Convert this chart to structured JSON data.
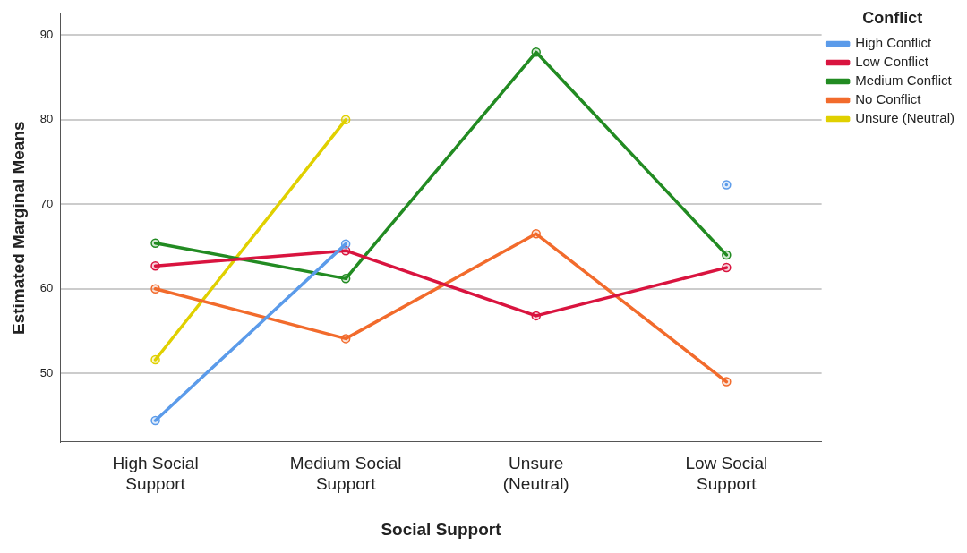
{
  "chart_data": {
    "type": "line",
    "xlabel": "Social Support",
    "ylabel": "Estimated Marginal Means",
    "legend_title": "Conflict",
    "categories": [
      "High Social Support",
      "Medium Social Support",
      "Unsure (Neutral)",
      "Low Social Support"
    ],
    "series": [
      {
        "name": "High Conflict",
        "color": "#5b9bea",
        "values": [
          44.4,
          65.3,
          null,
          72.3
        ]
      },
      {
        "name": "Low Conflict",
        "color": "#d9143f",
        "values": [
          62.7,
          64.5,
          56.8,
          62.5
        ]
      },
      {
        "name": "Medium Conflict",
        "color": "#228b22",
        "values": [
          65.4,
          61.2,
          88,
          64
        ]
      },
      {
        "name": "No Conflict",
        "color": "#f26b2c",
        "values": [
          60,
          54.1,
          66.5,
          49
        ]
      },
      {
        "name": "Unsure (Neutral)",
        "color": "#e0d000",
        "values": [
          51.6,
          80,
          null,
          null
        ]
      }
    ],
    "ylim": [
      41.9,
      92.5
    ],
    "yticks": [
      50,
      60,
      70,
      80,
      90
    ],
    "grid": "y",
    "legend": "top right",
    "marker": "circle",
    "line_style": "solid"
  }
}
